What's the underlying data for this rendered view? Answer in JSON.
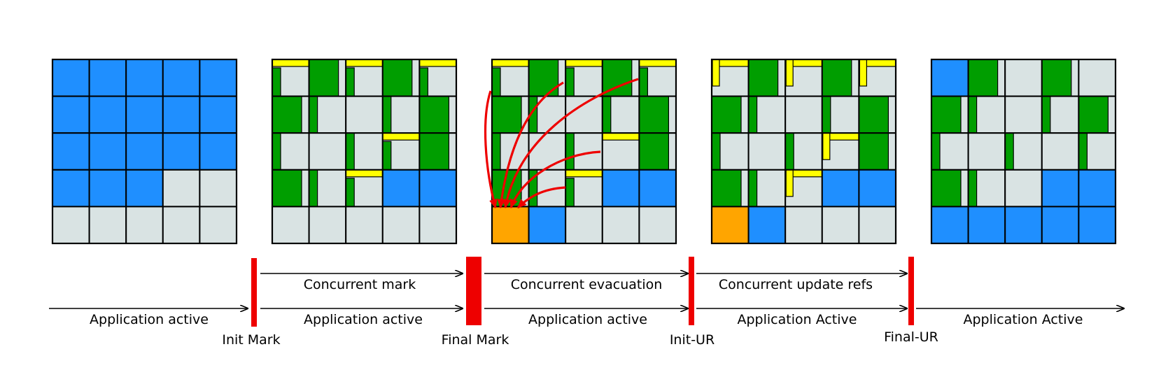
{
  "colors": {
    "live": "#1f8fff",
    "free": "#d9e3e3",
    "marked": "#009e00",
    "tams": "#ffff00",
    "collection_set_target": "#ffa500",
    "pause": "#ee0000",
    "arrow": "#000000",
    "grid_line": "#000000"
  },
  "heaps": [
    {
      "id": "before",
      "cells": [
        [
          "B",
          "B",
          "B",
          "B",
          "B"
        ],
        [
          "B",
          "B",
          "B",
          "B",
          "B"
        ],
        [
          "B",
          "B",
          "B",
          "B",
          "B"
        ],
        [
          "B",
          "B",
          "B",
          "F",
          "F"
        ],
        [
          "F",
          "F",
          "F",
          "F",
          "F"
        ]
      ]
    },
    {
      "id": "after-mark",
      "cells": [
        [
          "FYg",
          "GF",
          "FYg",
          "GF",
          "FYg"
        ],
        [
          "GF",
          "gF",
          "F",
          "gF",
          "GF"
        ],
        [
          "gF",
          "F",
          "gF",
          "Yg",
          "GF"
        ],
        [
          "GF",
          "gF",
          "Yg",
          "B",
          "B"
        ],
        [
          "F",
          "F",
          "F",
          "F",
          "F"
        ]
      ]
    },
    {
      "id": "after-evacuation",
      "cells": [
        [
          "FYg",
          "GF",
          "FYg",
          "GF",
          "FYg"
        ],
        [
          "GF",
          "gF",
          "F",
          "gF",
          "GF"
        ],
        [
          "gF",
          "F",
          "gF",
          "Y",
          "GF"
        ],
        [
          "GF",
          "gF",
          "Yg",
          "B",
          "B"
        ],
        [
          "O",
          "B",
          "F",
          "F",
          "F"
        ]
      ]
    },
    {
      "id": "after-update-refs",
      "cells": [
        [
          "FYs",
          "GF",
          "FYs",
          "GF",
          "FYs"
        ],
        [
          "GF",
          "gF",
          "F",
          "gF",
          "GF"
        ],
        [
          "gF",
          "F",
          "gF",
          "Ys",
          "GF"
        ],
        [
          "GF",
          "gF",
          "Ys",
          "B",
          "B"
        ],
        [
          "O",
          "B",
          "F",
          "F",
          "F"
        ]
      ]
    },
    {
      "id": "after-cleanup",
      "cells": [
        [
          "B",
          "GF",
          "F",
          "GF",
          "F"
        ],
        [
          "GF",
          "gF",
          "F",
          "gF",
          "GF"
        ],
        [
          "gF",
          "F",
          "gF",
          "F",
          "gF"
        ],
        [
          "GF",
          "gF",
          "F",
          "B",
          "B"
        ],
        [
          "B",
          "B",
          "B",
          "B",
          "B"
        ]
      ]
    }
  ],
  "timeline": {
    "phases": [
      {
        "concurrent": "",
        "app": "Application active"
      },
      {
        "concurrent": "Concurrent mark",
        "app": "Application active"
      },
      {
        "concurrent": "Concurrent evacuation",
        "app": "Application active"
      },
      {
        "concurrent": "Concurrent update refs",
        "app": "Application Active"
      },
      {
        "concurrent": "",
        "app": "Application Active"
      }
    ],
    "pauses": [
      {
        "label": "Init Mark"
      },
      {
        "label": "Final Mark"
      },
      {
        "label": "Init-UR"
      },
      {
        "label": "Final-UR"
      }
    ]
  }
}
